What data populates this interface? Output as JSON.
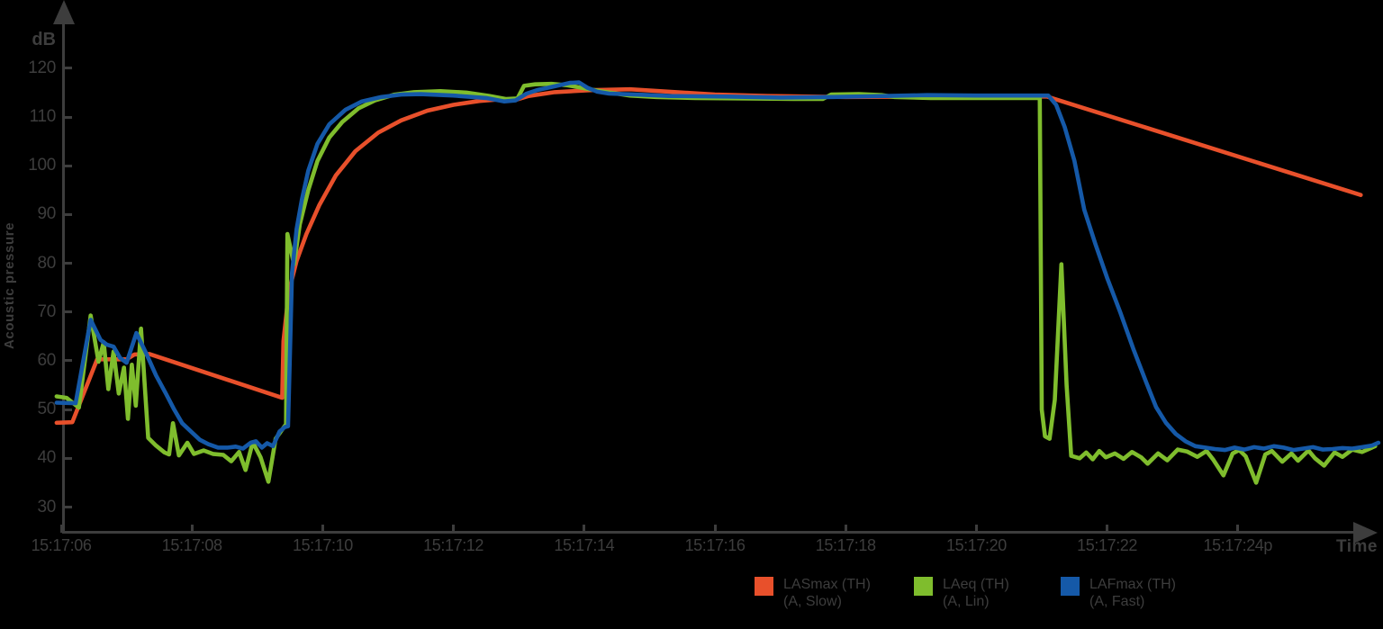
{
  "page": {
    "colors": {
      "background": "#000000",
      "axis": "#3D3D3D",
      "text": "#3D3D3D"
    }
  },
  "axes": {
    "y_unit": "dB",
    "y_title": "Acoustic pressure",
    "x_title": "Time"
  },
  "chart_data": {
    "type": "line",
    "title": "",
    "ylabel": "Acoustic pressure",
    "xlabel": "Time",
    "y_unit": "dB",
    "ylim": [
      30,
      120
    ],
    "grid": false,
    "legend_position": "bottom",
    "x_note": "t values are seconds after 15:17:00",
    "x_domain_seconds": [
      5.93,
      26.15
    ],
    "y_ticks": [
      120,
      110,
      100,
      90,
      80,
      70,
      60,
      50,
      40,
      30
    ],
    "x_ticks": [
      {
        "label": "15:17:06",
        "t": 6
      },
      {
        "label": "15:17:08",
        "t": 8
      },
      {
        "label": "15:17:10",
        "t": 10
      },
      {
        "label": "15:17:12",
        "t": 12
      },
      {
        "label": "15:17:14",
        "t": 14
      },
      {
        "label": "15:17:16",
        "t": 16
      },
      {
        "label": "15:17:18",
        "t": 18
      },
      {
        "label": "15:17:20",
        "t": 20
      },
      {
        "label": "15:17:22",
        "t": 22
      },
      {
        "label": "15:17:24p",
        "t": 24
      }
    ],
    "series": [
      {
        "id": "LASmax",
        "name": "LASmax (TH)",
        "sub": "(A, Slow)",
        "color": "#E8502B",
        "points": [
          [
            5.93,
            47.3
          ],
          [
            6.17,
            47.4
          ],
          [
            6.55,
            60.3
          ],
          [
            7.0,
            60.3
          ],
          [
            7.12,
            61.3
          ],
          [
            7.35,
            61.4
          ],
          [
            9.38,
            52.4
          ],
          [
            9.4,
            64.0
          ],
          [
            9.48,
            74.0
          ],
          [
            9.6,
            80.5
          ],
          [
            9.75,
            86.0
          ],
          [
            9.95,
            92.0
          ],
          [
            10.2,
            98.0
          ],
          [
            10.5,
            103.0
          ],
          [
            10.85,
            106.8
          ],
          [
            11.2,
            109.3
          ],
          [
            11.6,
            111.3
          ],
          [
            12.0,
            112.5
          ],
          [
            12.4,
            113.3
          ],
          [
            12.7,
            113.6
          ],
          [
            12.95,
            113.5
          ],
          [
            13.15,
            114.3
          ],
          [
            13.55,
            115.1
          ],
          [
            14.1,
            115.5
          ],
          [
            14.7,
            115.7
          ],
          [
            15.3,
            115.2
          ],
          [
            16.0,
            114.6
          ],
          [
            16.8,
            114.3
          ],
          [
            18.0,
            114.1
          ],
          [
            19.5,
            114.2
          ],
          [
            21.08,
            114.2
          ],
          [
            25.88,
            94.0
          ]
        ]
      },
      {
        "id": "LAeq",
        "name": "LAeq (TH)",
        "sub": "(A, Lin)",
        "color": "#7FBD2D",
        "points": [
          [
            5.93,
            52.7
          ],
          [
            6.08,
            52.4
          ],
          [
            6.27,
            50.4
          ],
          [
            6.45,
            69.3
          ],
          [
            6.57,
            59.8
          ],
          [
            6.65,
            63.8
          ],
          [
            6.72,
            54.2
          ],
          [
            6.8,
            61.9
          ],
          [
            6.88,
            53.3
          ],
          [
            6.96,
            58.6
          ],
          [
            7.02,
            48.1
          ],
          [
            7.08,
            59.2
          ],
          [
            7.14,
            50.8
          ],
          [
            7.22,
            66.6
          ],
          [
            7.33,
            44.2
          ],
          [
            7.45,
            42.6
          ],
          [
            7.58,
            41.2
          ],
          [
            7.65,
            40.8
          ],
          [
            7.71,
            47.2
          ],
          [
            7.8,
            40.6
          ],
          [
            7.93,
            43.2
          ],
          [
            8.03,
            40.9
          ],
          [
            8.18,
            41.6
          ],
          [
            8.32,
            40.9
          ],
          [
            8.48,
            40.7
          ],
          [
            8.6,
            39.4
          ],
          [
            8.72,
            41.3
          ],
          [
            8.82,
            37.6
          ],
          [
            8.93,
            43.3
          ],
          [
            9.05,
            40.2
          ],
          [
            9.17,
            35.2
          ],
          [
            9.28,
            44.0
          ],
          [
            9.36,
            45.5
          ],
          [
            9.44,
            47.0
          ],
          [
            9.46,
            86.0
          ],
          [
            9.56,
            79.8
          ],
          [
            9.65,
            88.0
          ],
          [
            9.78,
            95.0
          ],
          [
            9.92,
            101.0
          ],
          [
            10.1,
            105.8
          ],
          [
            10.3,
            109.0
          ],
          [
            10.55,
            111.8
          ],
          [
            10.8,
            113.4
          ],
          [
            11.1,
            114.6
          ],
          [
            11.4,
            115.1
          ],
          [
            11.8,
            115.3
          ],
          [
            12.2,
            115.0
          ],
          [
            12.55,
            114.3
          ],
          [
            12.8,
            113.7
          ],
          [
            12.98,
            113.8
          ],
          [
            13.08,
            116.4
          ],
          [
            13.25,
            116.7
          ],
          [
            13.5,
            116.8
          ],
          [
            13.75,
            116.5
          ],
          [
            14.0,
            115.9
          ],
          [
            14.3,
            115.2
          ],
          [
            14.7,
            114.4
          ],
          [
            15.1,
            114.1
          ],
          [
            15.7,
            113.9
          ],
          [
            16.5,
            113.8
          ],
          [
            17.2,
            113.7
          ],
          [
            17.65,
            113.7
          ],
          [
            17.78,
            114.6
          ],
          [
            18.2,
            114.7
          ],
          [
            18.55,
            114.5
          ],
          [
            18.75,
            114.1
          ],
          [
            19.3,
            113.9
          ],
          [
            20.2,
            113.9
          ],
          [
            20.97,
            113.9
          ],
          [
            21.0,
            50.0
          ],
          [
            21.05,
            44.5
          ],
          [
            21.12,
            44.0
          ],
          [
            21.2,
            52.0
          ],
          [
            21.3,
            79.8
          ],
          [
            21.38,
            55.0
          ],
          [
            21.45,
            40.5
          ],
          [
            21.58,
            40.0
          ],
          [
            21.68,
            41.2
          ],
          [
            21.78,
            39.8
          ],
          [
            21.88,
            41.5
          ],
          [
            21.98,
            40.2
          ],
          [
            22.12,
            41.0
          ],
          [
            22.25,
            39.9
          ],
          [
            22.38,
            41.3
          ],
          [
            22.52,
            40.2
          ],
          [
            22.62,
            38.9
          ],
          [
            22.78,
            41.0
          ],
          [
            22.92,
            39.6
          ],
          [
            23.08,
            41.8
          ],
          [
            23.22,
            41.4
          ],
          [
            23.38,
            40.3
          ],
          [
            23.52,
            41.5
          ],
          [
            23.62,
            39.8
          ],
          [
            23.78,
            36.5
          ],
          [
            23.92,
            41.0
          ],
          [
            24.02,
            41.7
          ],
          [
            24.12,
            40.4
          ],
          [
            24.28,
            35.0
          ],
          [
            24.42,
            40.8
          ],
          [
            24.52,
            41.5
          ],
          [
            24.68,
            39.3
          ],
          [
            24.82,
            41.0
          ],
          [
            24.92,
            39.5
          ],
          [
            25.08,
            41.6
          ],
          [
            25.18,
            40.0
          ],
          [
            25.32,
            38.5
          ],
          [
            25.48,
            41.2
          ],
          [
            25.6,
            40.3
          ],
          [
            25.75,
            41.8
          ],
          [
            25.9,
            41.3
          ],
          [
            26.1,
            42.5
          ]
        ]
      },
      {
        "id": "LAFmax",
        "name": "LAFmax (TH)",
        "sub": "(A, Fast)",
        "color": "#1559A8",
        "points": [
          [
            5.93,
            51.4
          ],
          [
            6.22,
            51.3
          ],
          [
            6.45,
            68.4
          ],
          [
            6.6,
            64.3
          ],
          [
            6.7,
            63.3
          ],
          [
            6.8,
            62.9
          ],
          [
            6.9,
            60.6
          ],
          [
            7.0,
            59.6
          ],
          [
            7.15,
            65.7
          ],
          [
            7.3,
            61.5
          ],
          [
            7.45,
            57.0
          ],
          [
            7.6,
            53.3
          ],
          [
            7.72,
            50.2
          ],
          [
            7.85,
            47.2
          ],
          [
            8.0,
            45.3
          ],
          [
            8.12,
            43.8
          ],
          [
            8.25,
            42.9
          ],
          [
            8.4,
            42.2
          ],
          [
            8.55,
            42.2
          ],
          [
            8.67,
            42.4
          ],
          [
            8.78,
            42.0
          ],
          [
            8.9,
            43.2
          ],
          [
            8.98,
            43.5
          ],
          [
            9.07,
            42.2
          ],
          [
            9.15,
            43.1
          ],
          [
            9.24,
            42.5
          ],
          [
            9.34,
            45.5
          ],
          [
            9.42,
            46.4
          ],
          [
            9.47,
            46.6
          ],
          [
            9.5,
            62.0
          ],
          [
            9.53,
            78.0
          ],
          [
            9.6,
            87.0
          ],
          [
            9.68,
            93.0
          ],
          [
            9.78,
            99.0
          ],
          [
            9.92,
            104.5
          ],
          [
            10.1,
            108.5
          ],
          [
            10.35,
            111.5
          ],
          [
            10.6,
            113.2
          ],
          [
            10.9,
            114.1
          ],
          [
            11.2,
            114.6
          ],
          [
            11.5,
            114.7
          ],
          [
            12.0,
            114.4
          ],
          [
            12.5,
            113.9
          ],
          [
            12.78,
            113.2
          ],
          [
            12.95,
            113.4
          ],
          [
            13.12,
            114.8
          ],
          [
            13.3,
            115.6
          ],
          [
            13.55,
            116.3
          ],
          [
            13.78,
            117.0
          ],
          [
            13.92,
            117.1
          ],
          [
            14.05,
            116.0
          ],
          [
            14.2,
            115.2
          ],
          [
            14.38,
            114.8
          ],
          [
            14.8,
            114.6
          ],
          [
            15.3,
            114.3
          ],
          [
            16.2,
            114.2
          ],
          [
            17.0,
            114.0
          ],
          [
            17.8,
            114.1
          ],
          [
            18.6,
            114.3
          ],
          [
            19.25,
            114.5
          ],
          [
            20.0,
            114.4
          ],
          [
            21.1,
            114.4
          ],
          [
            21.22,
            112.5
          ],
          [
            21.35,
            108.0
          ],
          [
            21.5,
            101.0
          ],
          [
            21.65,
            91.0
          ],
          [
            21.82,
            84.0
          ],
          [
            22.0,
            77.0
          ],
          [
            22.2,
            70.0
          ],
          [
            22.4,
            62.5
          ],
          [
            22.6,
            55.5
          ],
          [
            22.75,
            50.5
          ],
          [
            22.9,
            47.3
          ],
          [
            23.05,
            45.0
          ],
          [
            23.2,
            43.5
          ],
          [
            23.35,
            42.5
          ],
          [
            23.5,
            42.2
          ],
          [
            23.65,
            41.9
          ],
          [
            23.8,
            41.7
          ],
          [
            23.95,
            42.2
          ],
          [
            24.1,
            41.8
          ],
          [
            24.25,
            42.3
          ],
          [
            24.4,
            42.0
          ],
          [
            24.55,
            42.5
          ],
          [
            24.7,
            42.2
          ],
          [
            24.85,
            41.7
          ],
          [
            25.0,
            42.0
          ],
          [
            25.15,
            42.3
          ],
          [
            25.3,
            41.8
          ],
          [
            25.45,
            41.9
          ],
          [
            25.6,
            42.1
          ],
          [
            25.75,
            42.0
          ],
          [
            25.9,
            42.3
          ],
          [
            26.05,
            42.6
          ],
          [
            26.15,
            43.2
          ]
        ]
      }
    ]
  }
}
